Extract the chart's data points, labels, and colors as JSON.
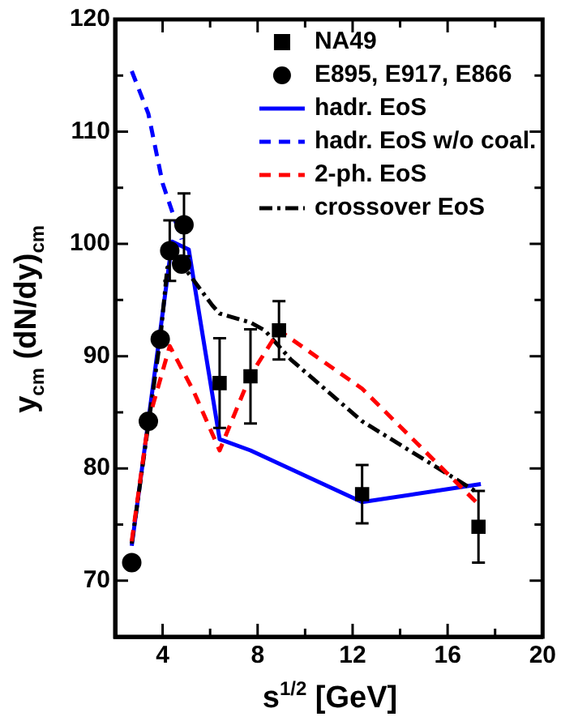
{
  "chart_data": {
    "type": "line",
    "xlabel": "s$^{1/2}$ [GeV]",
    "ylabel": "y$_{cm}$ (dN/dy)$_{cm}$",
    "xlim": [
      2,
      20
    ],
    "ylim": [
      65,
      120
    ],
    "xticks": [
      {
        "value": 2,
        "label": null
      },
      4,
      {
        "value": 6,
        "label": null
      },
      8,
      {
        "value": 10,
        "label": null
      },
      12,
      {
        "value": 14,
        "label": null
      },
      16,
      {
        "value": 18,
        "label": null
      },
      20
    ],
    "yticks": [
      {
        "value": 65,
        "label": null
      },
      70,
      {
        "value": 75,
        "label": null
      },
      80,
      {
        "value": 85,
        "label": null
      },
      90,
      {
        "value": 95,
        "label": null
      },
      100,
      {
        "value": 105,
        "label": null
      },
      110,
      {
        "value": 115,
        "label": null
      },
      120
    ],
    "grid": false,
    "legend": "top right",
    "series": [
      {
        "name": "NA49",
        "type": "scatter",
        "marker": "square",
        "color": "#000000",
        "x": [
          6.4,
          7.7,
          8.9,
          12.4,
          17.3
        ],
        "values": [
          87.6,
          88.2,
          92.3,
          77.7,
          74.8
        ],
        "errors": [
          4.0,
          4.2,
          2.6,
          2.6,
          3.2
        ]
      },
      {
        "name": "E895, E917, E866",
        "type": "scatter",
        "marker": "circle",
        "color": "#000000",
        "x": [
          2.7,
          3.4,
          3.9,
          4.3,
          4.8,
          4.9
        ],
        "values": [
          71.6,
          84.2,
          91.5,
          99.4,
          98.2,
          101.7
        ],
        "errors": [
          null,
          null,
          null,
          2.7,
          null,
          2.8
        ]
      },
      {
        "name": "hadr. EoS",
        "type": "line",
        "line_style": "solid",
        "color": "#0000ff",
        "x": [
          2.7,
          4.4,
          5.1,
          6.4,
          7.7,
          12.4,
          17.4
        ],
        "values": [
          73.1,
          100.2,
          99.5,
          82.6,
          81.6,
          77.0,
          78.6
        ]
      },
      {
        "name": "hadr. EoS w/o coal.",
        "type": "line",
        "line_style": "dashed",
        "color": "#0000ff",
        "x": [
          2.7,
          3.4,
          4.0,
          4.8
        ],
        "values": [
          115.4,
          111.6,
          105.4,
          100.4
        ]
      },
      {
        "name": "2-ph. EoS",
        "type": "line",
        "line_style": "dashed",
        "color": "#ff0000",
        "x": [
          2.7,
          3.4,
          4.3,
          5.3,
          6.4,
          7.7,
          8.9,
          12.4,
          17.2
        ],
        "values": [
          73.5,
          84.2,
          90.9,
          86.9,
          81.6,
          88.3,
          92.3,
          87.1,
          77.0
        ]
      },
      {
        "name": "crossover EoS",
        "type": "line",
        "line_style": "dashdot",
        "color": "#000000",
        "x": [
          2.7,
          3.9,
          4.2,
          4.8,
          6.1,
          6.4,
          7.7,
          8.3,
          9.4,
          12.4,
          17.3
        ],
        "values": [
          73.3,
          91.5,
          97.9,
          98.2,
          94.5,
          93.8,
          93.0,
          92.3,
          89.7,
          84.2,
          77.8
        ]
      }
    ]
  }
}
